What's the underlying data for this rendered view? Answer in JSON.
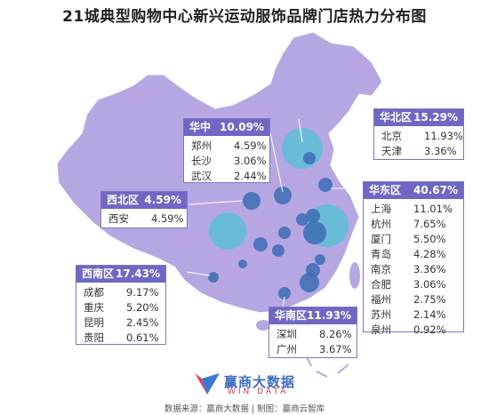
{
  "title": "21城典型购物中心新兴运动服饰品牌门店热力分布图",
  "colors": {
    "map_fill": "#b6a7e3",
    "bubble": "#4fc1d4",
    "dot": "#3d6db5",
    "header": "#6e68c4"
  },
  "regions": [
    {
      "key": "huazhong",
      "name": "华中区",
      "share": "10.09%",
      "cities": [
        {
          "city": "郑州",
          "value": "4.59%"
        },
        {
          "city": "长沙",
          "value": "3.06%"
        },
        {
          "city": "武汉",
          "value": "2.44%"
        }
      ]
    },
    {
      "key": "huabei",
      "name": "华北区",
      "share": "15.29%",
      "cities": [
        {
          "city": "北京",
          "value": "11.93%"
        },
        {
          "city": "天津",
          "value": "3.36%"
        }
      ]
    },
    {
      "key": "xibei",
      "name": "西北区",
      "share": "4.59%",
      "cities": [
        {
          "city": "西安",
          "value": "4.59%"
        }
      ]
    },
    {
      "key": "huadong",
      "name": "华东区",
      "share": "40.67%",
      "cities": [
        {
          "city": "上海",
          "value": "11.01%"
        },
        {
          "city": "杭州",
          "value": "7.65%"
        },
        {
          "city": "厦门",
          "value": "5.50%"
        },
        {
          "city": "青岛",
          "value": "4.28%"
        },
        {
          "city": "南京",
          "value": "3.36%"
        },
        {
          "city": "合肥",
          "value": "3.06%"
        },
        {
          "city": "福州",
          "value": "2.75%"
        },
        {
          "city": "苏州",
          "value": "2.14%"
        },
        {
          "city": "泉州",
          "value": "0.92%"
        }
      ]
    },
    {
      "key": "xinan",
      "name": "西南区",
      "share": "17.43%",
      "cities": [
        {
          "city": "成都",
          "value": "9.17%"
        },
        {
          "city": "重庆",
          "value": "5.20%"
        },
        {
          "city": "昆明",
          "value": "2.45%"
        },
        {
          "city": "贵阳",
          "value": "0.61%"
        }
      ]
    },
    {
      "key": "huanan",
      "name": "华南区",
      "share": "11.93%",
      "cities": [
        {
          "city": "深圳",
          "value": "8.26%"
        },
        {
          "city": "广州",
          "value": "3.67%"
        }
      ]
    }
  ],
  "logo": {
    "cn": "赢商大数据",
    "en": "WIN DATA"
  },
  "footer": "数据来源：赢商大数据 | 制图：赢商云智库"
}
